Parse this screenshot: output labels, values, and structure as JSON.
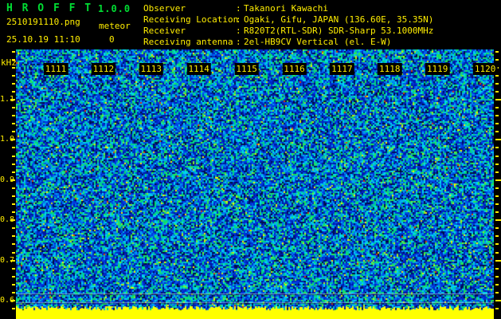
{
  "app": {
    "title": "H R O F F T",
    "version": "1.0.0"
  },
  "session": {
    "filename": "2510191110.png",
    "mode": "meteor",
    "datetime": "25.10.19 11:10",
    "count": "0"
  },
  "info": {
    "separator": ":",
    "rows": [
      {
        "label": "Observer",
        "value": "Takanori Kawachi"
      },
      {
        "label": "Receiving Location",
        "value": "Ogaki, Gifu, JAPAN (136.60E, 35.35N)"
      },
      {
        "label": "Receiver",
        "value": "R820T2(RTL-SDR) SDR-Sharp 53.1000MHz"
      },
      {
        "label": "Receiving antenna",
        "value": "2el-HB9CV Vertical (el. E-W)"
      }
    ]
  },
  "chart_data": {
    "type": "heatmap",
    "title": "",
    "ylabel": "kHz",
    "y_ticks": [
      "1.1",
      "1.0",
      "0.9",
      "0.8",
      "0.7",
      "0.6"
    ],
    "y_tick_values": [
      1.1,
      1.0,
      0.9,
      0.8,
      0.7,
      0.6
    ],
    "y_range": [
      0.58,
      1.22
    ],
    "y_minor_step": 0.02,
    "x_ticks": [
      "1111",
      "1112",
      "1113",
      "1114",
      "1115",
      "1116",
      "1117",
      "1118",
      "1119",
      "1120"
    ],
    "x_axis_meaning": "time (HHMM), one minute per division",
    "content": "broadband receiver noise, no meteor echoes; saturated signal-level bar at bottom",
    "grid": false,
    "legend": "none"
  },
  "colors": {
    "background": "#000000",
    "accent_green": "#00dd33",
    "accent_yellow": "#ffee00",
    "level_bar_yellow": "#ffff00",
    "noise_palette": [
      {
        "c": "#001038",
        "w": 4
      },
      {
        "c": "#000d5e",
        "w": 6
      },
      {
        "c": "#0019a0",
        "w": 10
      },
      {
        "c": "#0026c4",
        "w": 10
      },
      {
        "c": "#0036e0",
        "w": 8
      },
      {
        "c": "#0052e8",
        "w": 7
      },
      {
        "c": "#0075ee",
        "w": 6
      },
      {
        "c": "#0397f0",
        "w": 5
      },
      {
        "c": "#00b4ee",
        "w": 6
      },
      {
        "c": "#00d8ee",
        "w": 7
      },
      {
        "c": "#00cf9a",
        "w": 7
      },
      {
        "c": "#06dc6e",
        "w": 6
      },
      {
        "c": "#2ce94f",
        "w": 4
      },
      {
        "c": "#7dee33",
        "w": 1.6
      },
      {
        "c": "#c8ee11",
        "w": 0.7
      },
      {
        "c": "#ffee00",
        "w": 0.4
      },
      {
        "c": "#e03b00",
        "w": 0.25
      }
    ]
  }
}
